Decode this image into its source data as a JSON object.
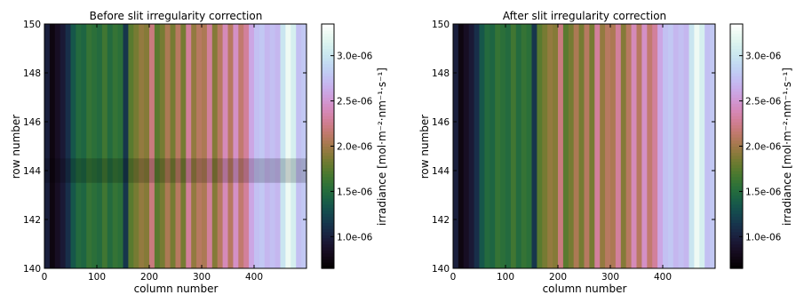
{
  "chart_data": [
    {
      "type": "heatmap",
      "title": "Before slit irregularity correction",
      "xlabel": "column number",
      "ylabel": "row number",
      "xlim": [
        0,
        500
      ],
      "ylim": [
        140,
        150
      ],
      "xticks": [
        "0",
        "100",
        "200",
        "300",
        "400"
      ],
      "yticks": [
        "140",
        "142",
        "144",
        "146",
        "148",
        "150"
      ],
      "colorbar": {
        "label": "irradiance [mol·m⁻²·nm⁻¹·s⁻¹]",
        "ticks": [
          "1.0e-06",
          "1.5e-06",
          "2.0e-06",
          "2.5e-06",
          "3.0e-06"
        ],
        "range": [
          6.5e-07,
          3.35e-06
        ],
        "colormap": "cubehelix"
      },
      "stripe_row_range": [
        143.5,
        144.5
      ]
    },
    {
      "type": "heatmap",
      "title": "After slit irregularity correction",
      "xlabel": "column number",
      "ylabel": "row number",
      "xlim": [
        0,
        500
      ],
      "ylim": [
        140,
        150
      ],
      "xticks": [
        "0",
        "100",
        "200",
        "300",
        "400"
      ],
      "yticks": [
        "140",
        "142",
        "144",
        "146",
        "148",
        "150"
      ],
      "colorbar": {
        "label": "irradiance [mol·m⁻²·nm⁻¹·s⁻¹]",
        "ticks": [
          "1.0e-06",
          "1.5e-06",
          "2.0e-06",
          "2.5e-06",
          "3.0e-06"
        ],
        "range": [
          6.5e-07,
          3.35e-06
        ],
        "colormap": "cubehelix"
      },
      "stripe_row_range": null
    }
  ],
  "column_profile": {
    "x_step": 10,
    "values": [
      1e-06,
      7.5e-07,
      8.5e-07,
      9.5e-07,
      1.1e-06,
      1.35e-06,
      1.5e-06,
      1.45e-06,
      1.6e-06,
      1.55e-06,
      1.5e-06,
      1.65e-06,
      1.5e-06,
      1.6e-06,
      1.55e-06,
      1.15e-06,
      1.75e-06,
      1.85e-06,
      1.95e-06,
      1.9e-06,
      2.2e-06,
      1.75e-06,
      1.85e-06,
      2.05e-06,
      1.85e-06,
      2.1e-06,
      1.85e-06,
      2.3e-06,
      1.95e-06,
      2.1e-06,
      2.05e-06,
      2.3e-06,
      1.9e-06,
      2.1e-06,
      2.4e-06,
      2.1e-06,
      2.45e-06,
      2.15e-06,
      2.3e-06,
      2.6e-06,
      2.75e-06,
      2.8e-06,
      2.7e-06,
      2.75e-06,
      2.7e-06,
      3e-06,
      3.25e-06,
      3.1e-06,
      2.75e-06,
      2.8e-06
    ]
  }
}
